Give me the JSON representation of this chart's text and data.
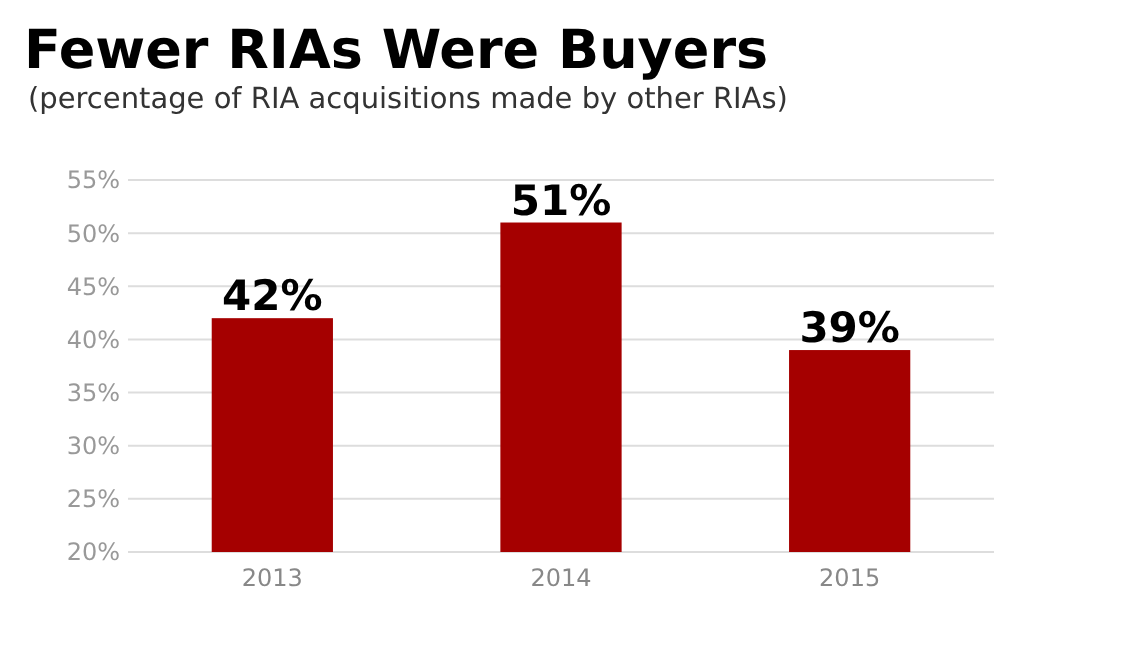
{
  "chart_data": {
    "type": "bar",
    "title": "Fewer RIAs Were Buyers",
    "subtitle": "(percentage of RIA acquisitions made by other RIAs)",
    "categories": [
      "2013",
      "2014",
      "2015"
    ],
    "values": [
      42,
      51,
      39
    ],
    "color": "#a50000",
    "value_labels": [
      "42%",
      "51%",
      "39%"
    ],
    "ylim": [
      20,
      55
    ],
    "yticks": [
      {
        "value": 20,
        "label": "20%"
      },
      {
        "value": 25,
        "label": "25%"
      },
      {
        "value": 30,
        "label": "30%"
      },
      {
        "value": 35,
        "label": "35%"
      },
      {
        "value": 40,
        "label": "40%"
      },
      {
        "value": 45,
        "label": "45%"
      },
      {
        "value": 50,
        "label": "50%"
      },
      {
        "value": 55,
        "label": "55%"
      }
    ],
    "grid": "y"
  }
}
